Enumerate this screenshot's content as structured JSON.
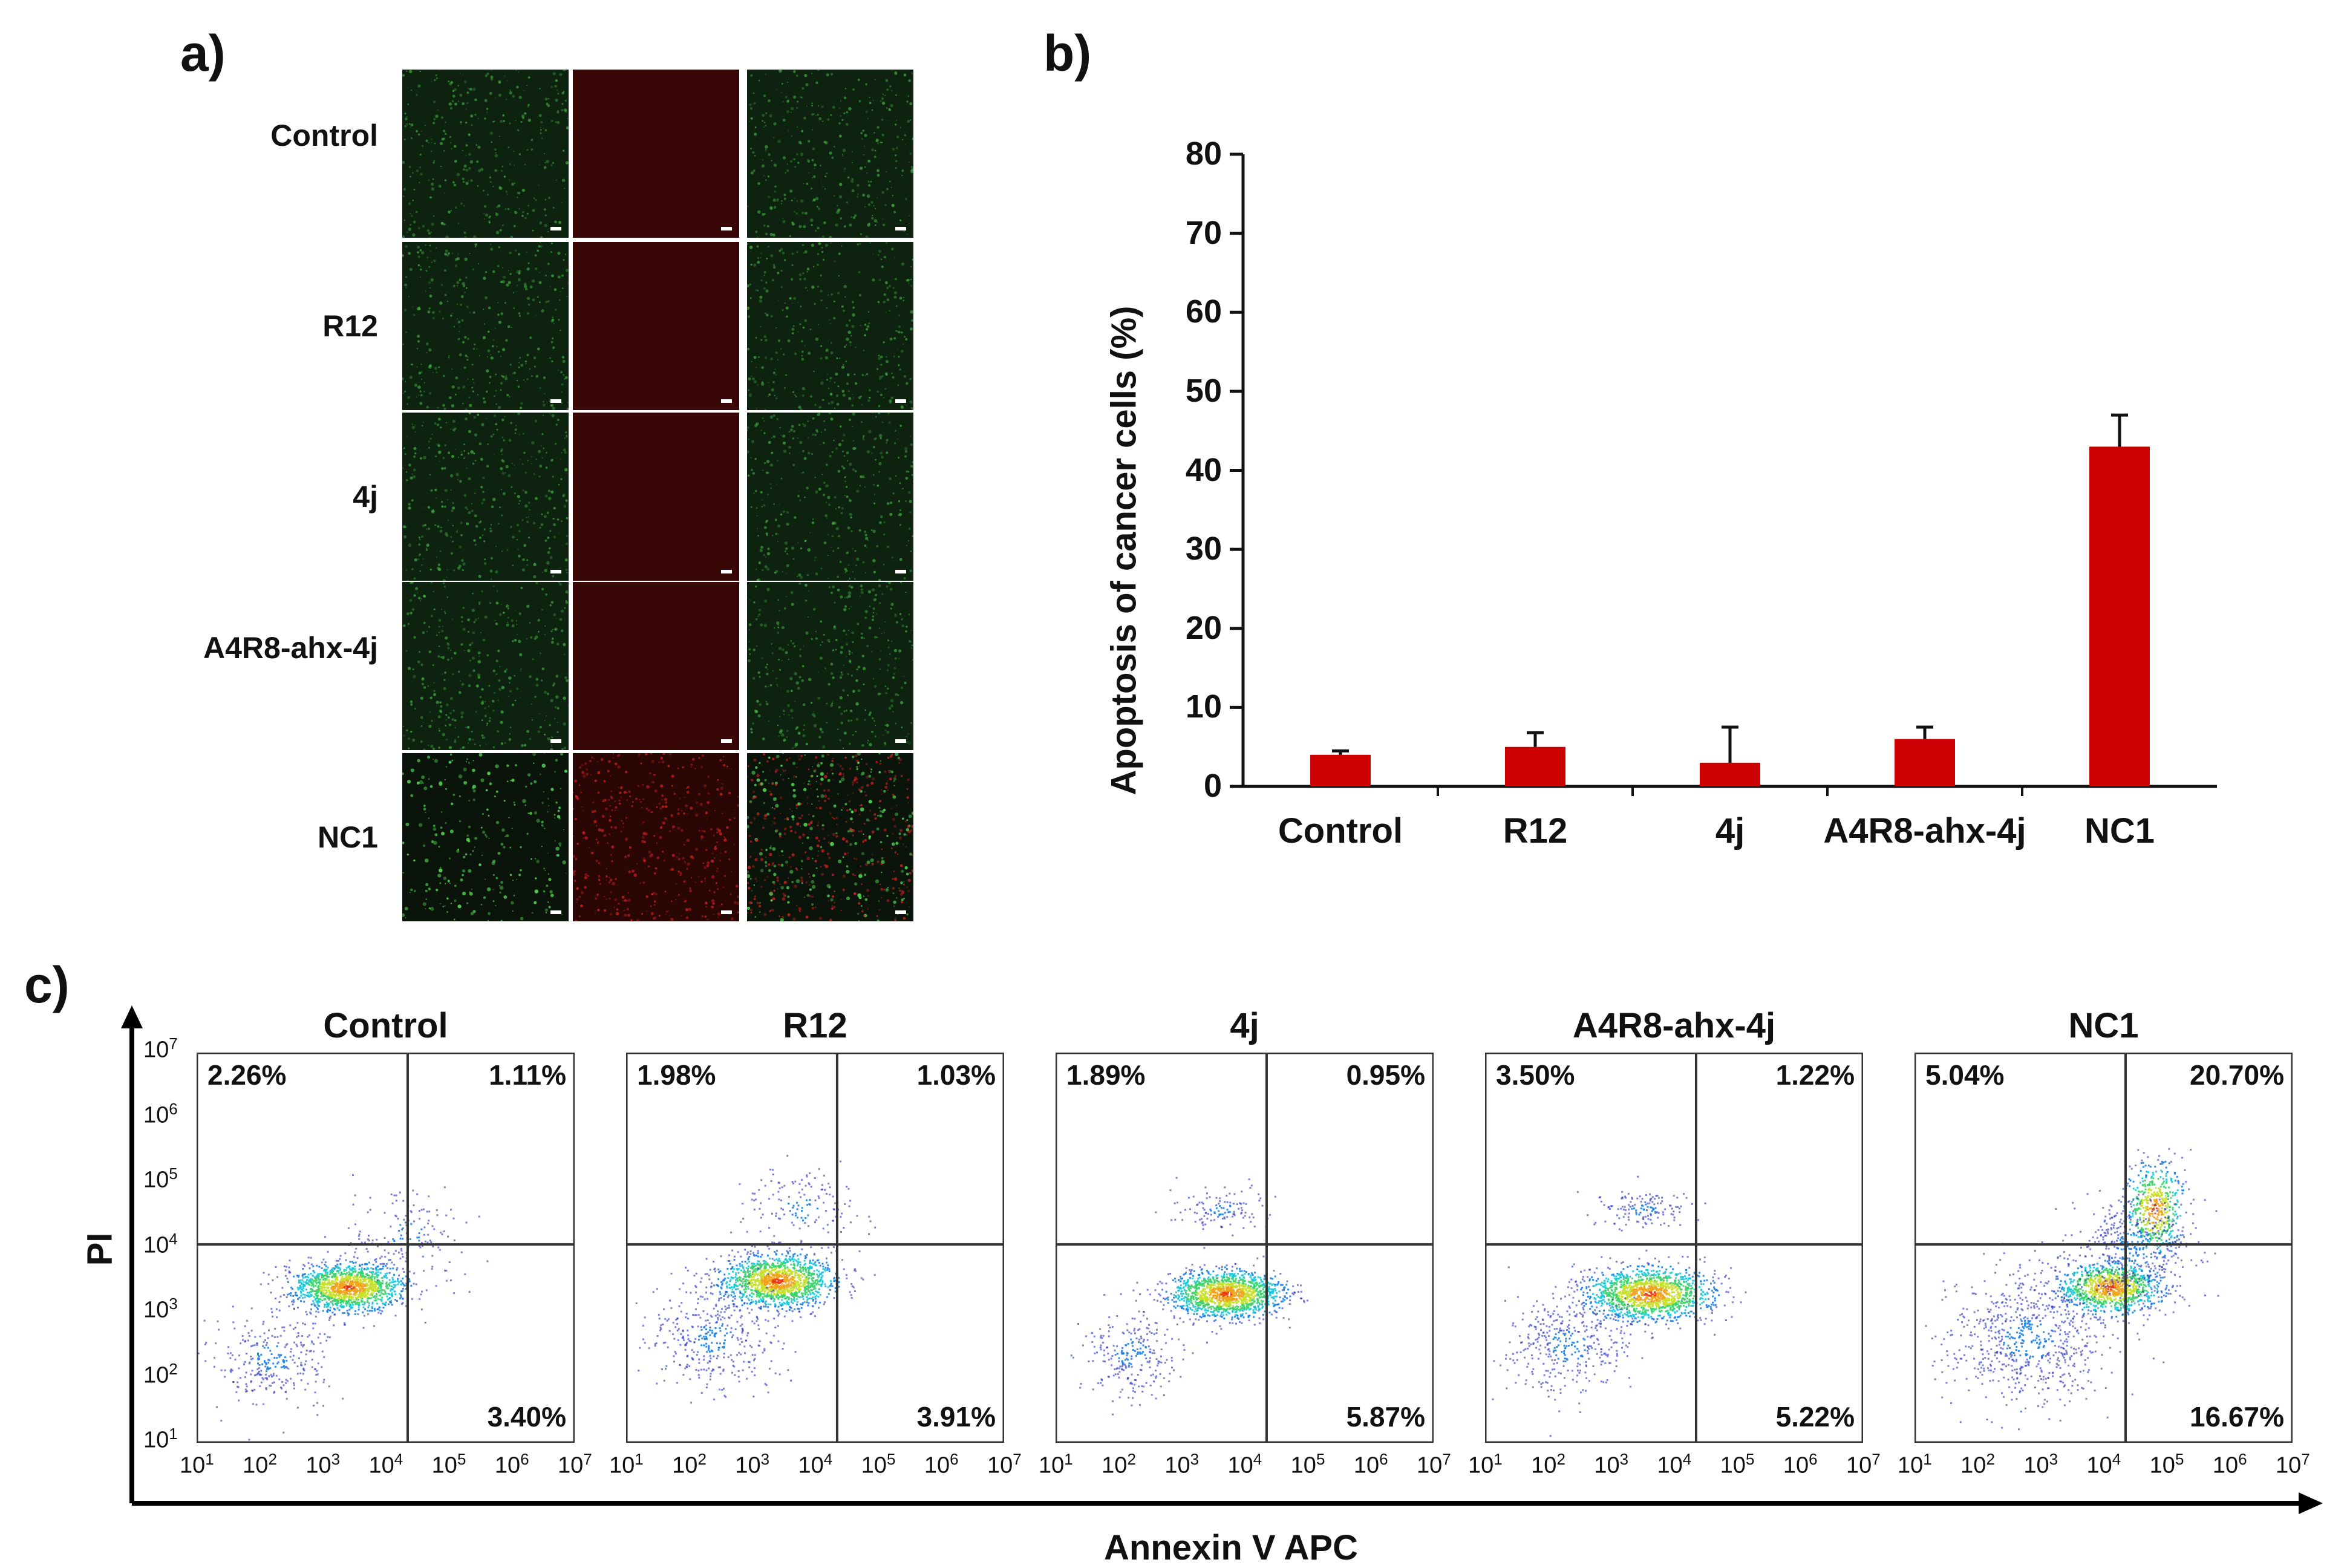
{
  "panel_a": {
    "letter": "a)",
    "rows": [
      {
        "label": "Control"
      },
      {
        "label": "R12"
      },
      {
        "label": "4j"
      },
      {
        "label": "A4R8-ahx-4j"
      },
      {
        "label": "NC1"
      }
    ]
  },
  "panel_b": {
    "letter": "b)"
  },
  "panel_c": {
    "letter": "c)",
    "y_axis_title": "PI",
    "x_axis_title": "Annexin V APC",
    "tick_exponents": [
      "1",
      "2",
      "3",
      "4",
      "5",
      "6",
      "7"
    ],
    "tick_base": "10",
    "plots": [
      {
        "title": "Control",
        "ul": "2.26%",
        "ur": "1.11%",
        "lr": "3.40%"
      },
      {
        "title": "R12",
        "ul": "1.98%",
        "ur": "1.03%",
        "lr": "3.91%"
      },
      {
        "title": "4j",
        "ul": "1.89%",
        "ur": "0.95%",
        "lr": "5.87%"
      },
      {
        "title": "A4R8-ahx-4j",
        "ul": "3.50%",
        "ur": "1.22%",
        "lr": "5.22%"
      },
      {
        "title": "NC1",
        "ul": "5.04%",
        "ur": "20.70%",
        "lr": "16.67%"
      }
    ]
  },
  "chart_data": [
    {
      "type": "bar",
      "categories": [
        "Control",
        "R12",
        "4j",
        "A4R8-ahx-4j",
        "NC1"
      ],
      "values": [
        4,
        5,
        3,
        6,
        43
      ],
      "errors": [
        0.5,
        1.8,
        4.5,
        1.5,
        4
      ],
      "title": "",
      "xlabel": "",
      "ylabel": "Apoptosis of cancer cells (%)",
      "ylim": [
        0,
        80
      ],
      "yticks": [
        0,
        10,
        20,
        30,
        40,
        50,
        60,
        70,
        80
      ],
      "bar_color": "#cc0000",
      "grid": false
    }
  ]
}
